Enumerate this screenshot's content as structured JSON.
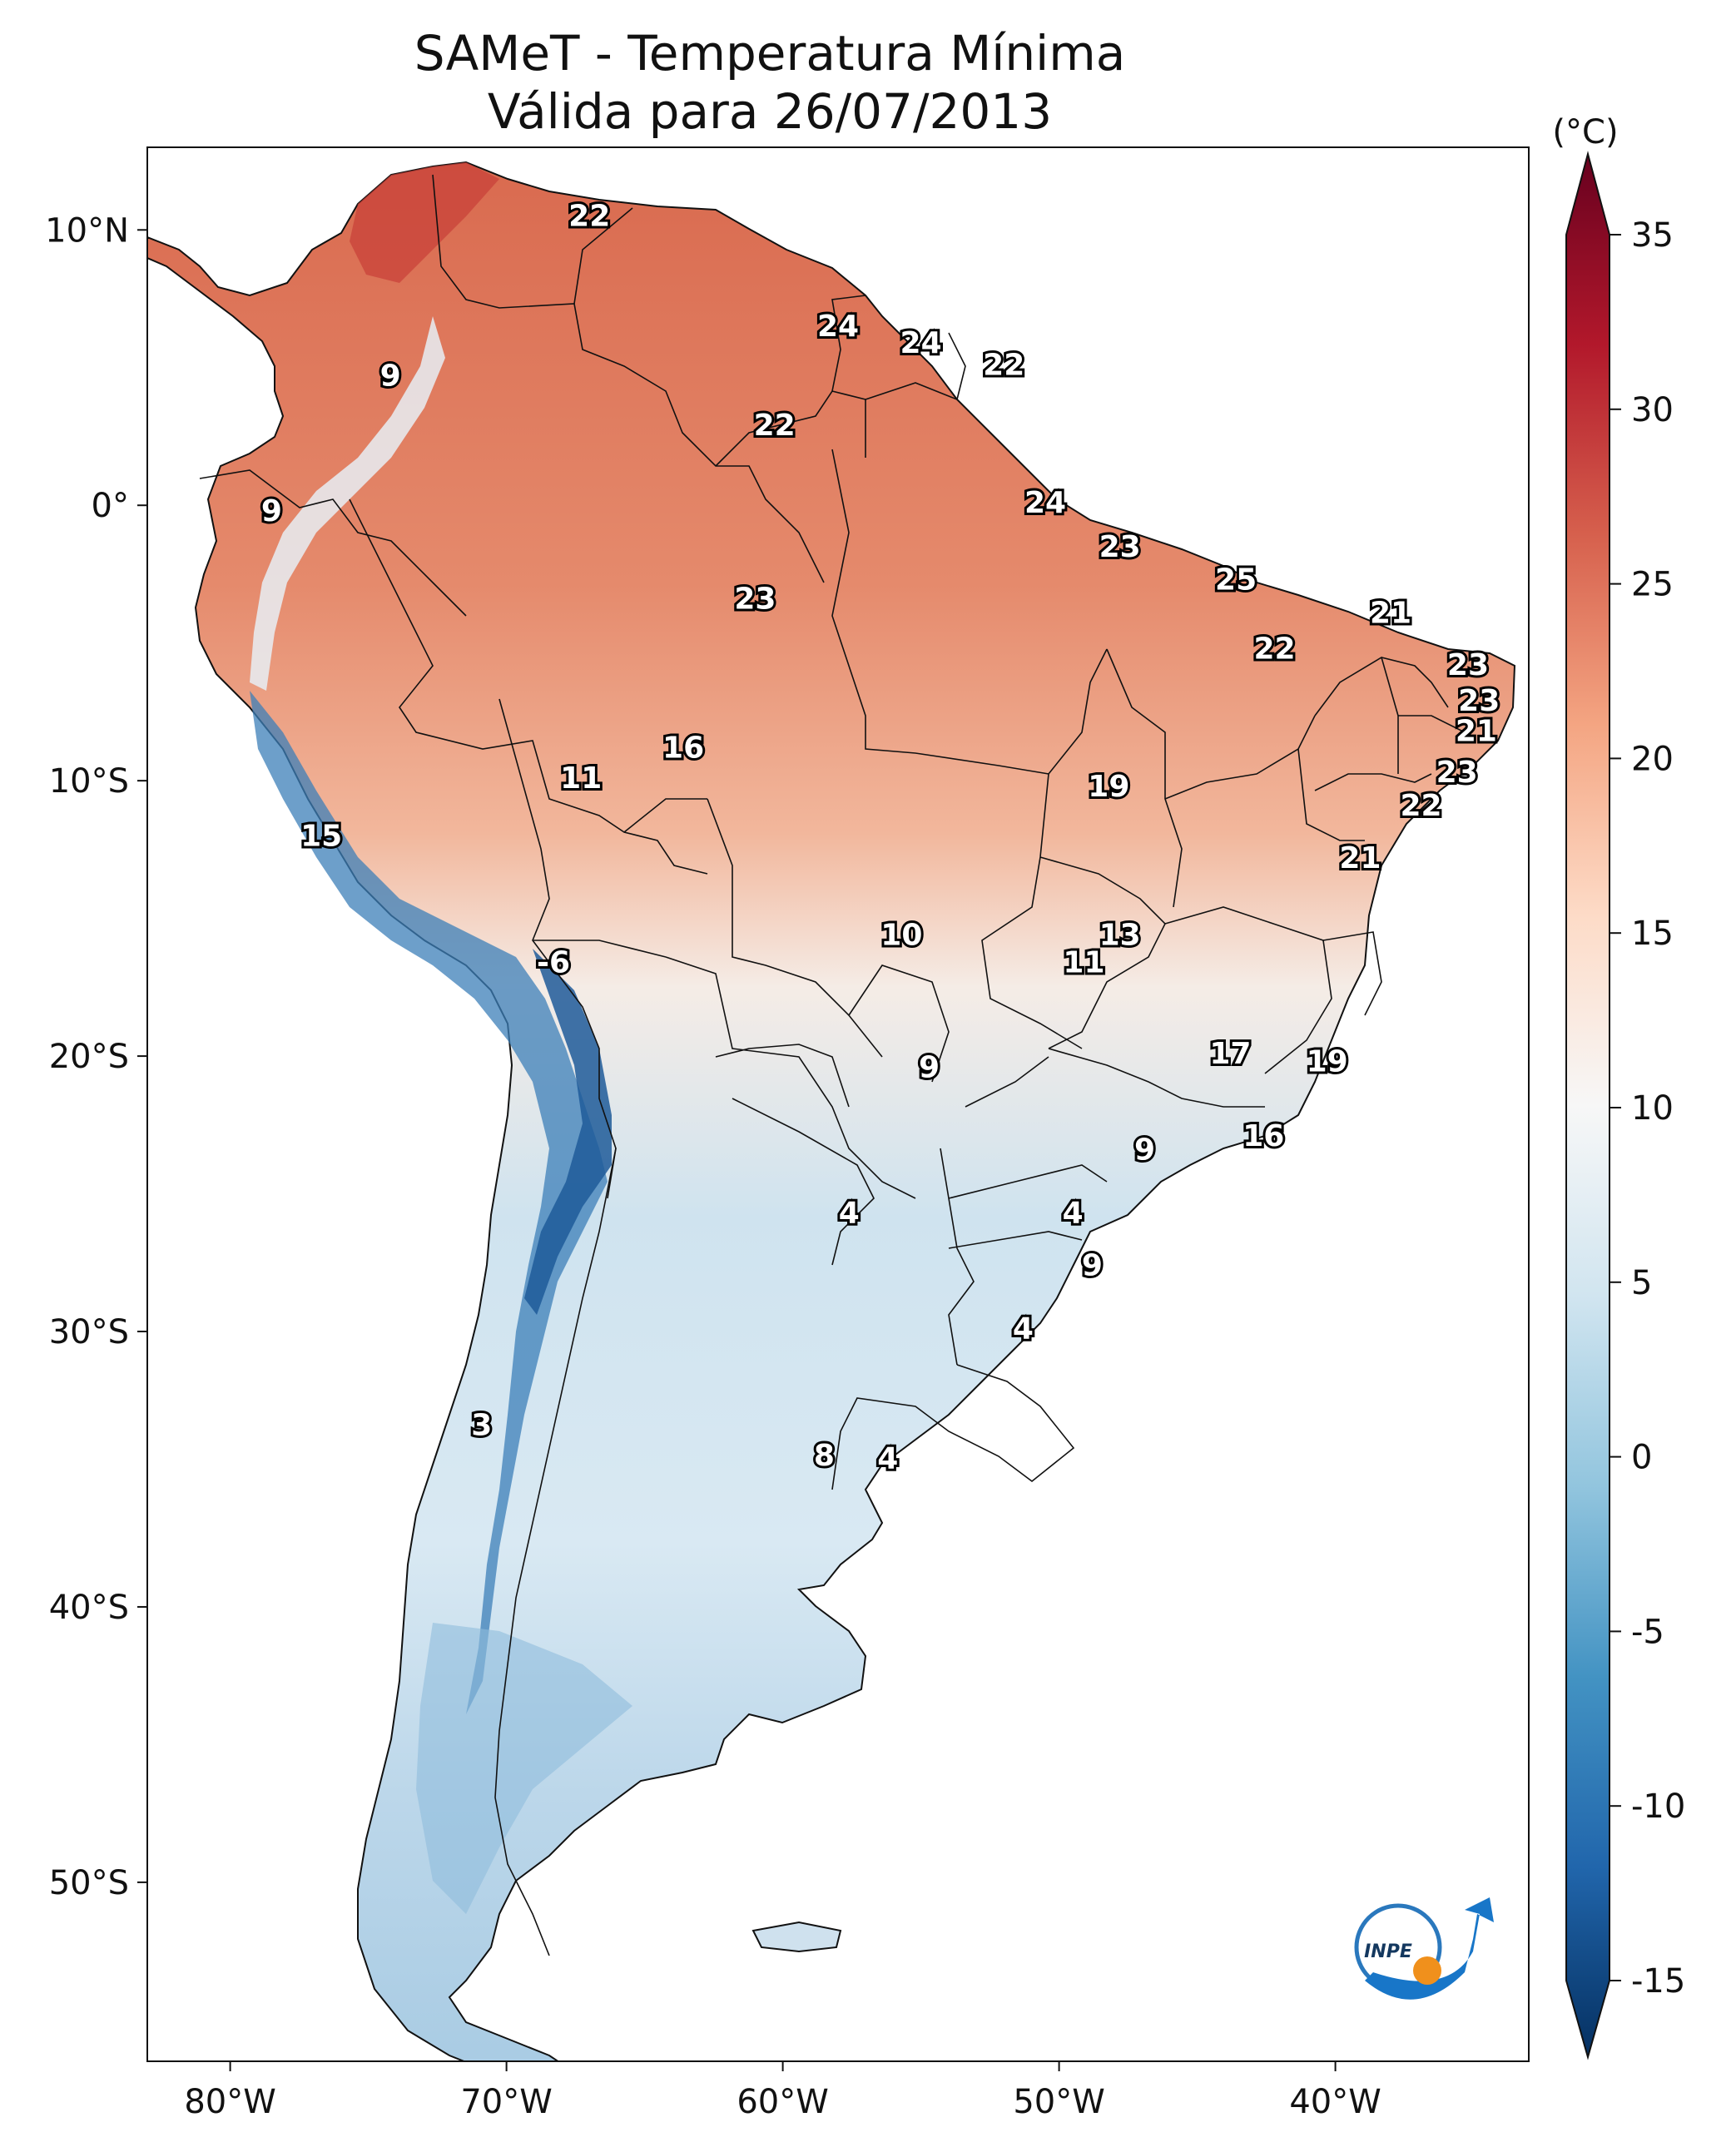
{
  "title": {
    "line1": "SAMeT - Temperatura Mínima",
    "line2": "Válida para 26/07/2013"
  },
  "colorbar": {
    "unit": "(°C)",
    "min": -15,
    "max": 35,
    "ticks": [
      "35",
      "30",
      "25",
      "20",
      "15",
      "10",
      "5",
      "0",
      "-5",
      "-10",
      "-15"
    ],
    "colors": [
      "#053061",
      "#2166ac",
      "#4393c3",
      "#92c5de",
      "#d1e5f0",
      "#f7f7f7",
      "#fddbc7",
      "#f4a582",
      "#d6604d",
      "#b2182b",
      "#67001f"
    ]
  },
  "axes": {
    "lon_ticks": [
      "80°W",
      "70°W",
      "60°W",
      "50°W",
      "40°W"
    ],
    "lat_ticks": [
      "10°N",
      "0°",
      "10°S",
      "20°S",
      "30°S",
      "40°S",
      "50°S"
    ]
  },
  "isolabels": [
    {
      "text": "22",
      "lon": -67,
      "lat": 10.5
    },
    {
      "text": "9",
      "lon": -74.2,
      "lat": 4.7
    },
    {
      "text": "9",
      "lon": -78.5,
      "lat": -0.2
    },
    {
      "text": "24",
      "lon": -58,
      "lat": 6.5
    },
    {
      "text": "24",
      "lon": -55,
      "lat": 5.9
    },
    {
      "text": "22",
      "lon": -52,
      "lat": 5.1
    },
    {
      "text": "22",
      "lon": -60.3,
      "lat": 2.9
    },
    {
      "text": "24",
      "lon": -50.5,
      "lat": 0.1
    },
    {
      "text": "23",
      "lon": -47.8,
      "lat": -1.5
    },
    {
      "text": "25",
      "lon": -43.6,
      "lat": -2.7
    },
    {
      "text": "21",
      "lon": -38,
      "lat": -3.9
    },
    {
      "text": "23",
      "lon": -61,
      "lat": -3.4
    },
    {
      "text": "22",
      "lon": -42.2,
      "lat": -5.2
    },
    {
      "text": "23",
      "lon": -35.2,
      "lat": -5.8
    },
    {
      "text": "23",
      "lon": -34.8,
      "lat": -7.1
    },
    {
      "text": "21",
      "lon": -34.9,
      "lat": -8.2
    },
    {
      "text": "16",
      "lon": -63.6,
      "lat": -8.8
    },
    {
      "text": "11",
      "lon": -67.3,
      "lat": -9.9
    },
    {
      "text": "19",
      "lon": -48.2,
      "lat": -10.2
    },
    {
      "text": "23",
      "lon": -35.6,
      "lat": -9.7
    },
    {
      "text": "22",
      "lon": -36.9,
      "lat": -10.9
    },
    {
      "text": "15",
      "lon": -76.7,
      "lat": -12
    },
    {
      "text": "21",
      "lon": -39.1,
      "lat": -12.8
    },
    {
      "text": "10",
      "lon": -55.7,
      "lat": -15.6
    },
    {
      "text": "13",
      "lon": -47.8,
      "lat": -15.6
    },
    {
      "text": "11",
      "lon": -49.1,
      "lat": -16.6
    },
    {
      "text": "-6",
      "lon": -68.3,
      "lat": -16.6
    },
    {
      "text": "17",
      "lon": -43.8,
      "lat": -19.9
    },
    {
      "text": "19",
      "lon": -40.3,
      "lat": -20.2
    },
    {
      "text": "9",
      "lon": -54.7,
      "lat": -20.4
    },
    {
      "text": "16",
      "lon": -42.6,
      "lat": -22.9
    },
    {
      "text": "9",
      "lon": -46.9,
      "lat": -23.4
    },
    {
      "text": "4",
      "lon": -57.6,
      "lat": -25.7
    },
    {
      "text": "4",
      "lon": -49.5,
      "lat": -25.7
    },
    {
      "text": "9",
      "lon": -48.8,
      "lat": -27.6
    },
    {
      "text": "4",
      "lon": -51.3,
      "lat": -29.9
    },
    {
      "text": "3",
      "lon": -70.9,
      "lat": -33.4
    },
    {
      "text": "8",
      "lon": -58.5,
      "lat": -34.5
    },
    {
      "text": "4",
      "lon": -56.2,
      "lat": -34.6
    }
  ],
  "logo": {
    "text": "INPE"
  }
}
